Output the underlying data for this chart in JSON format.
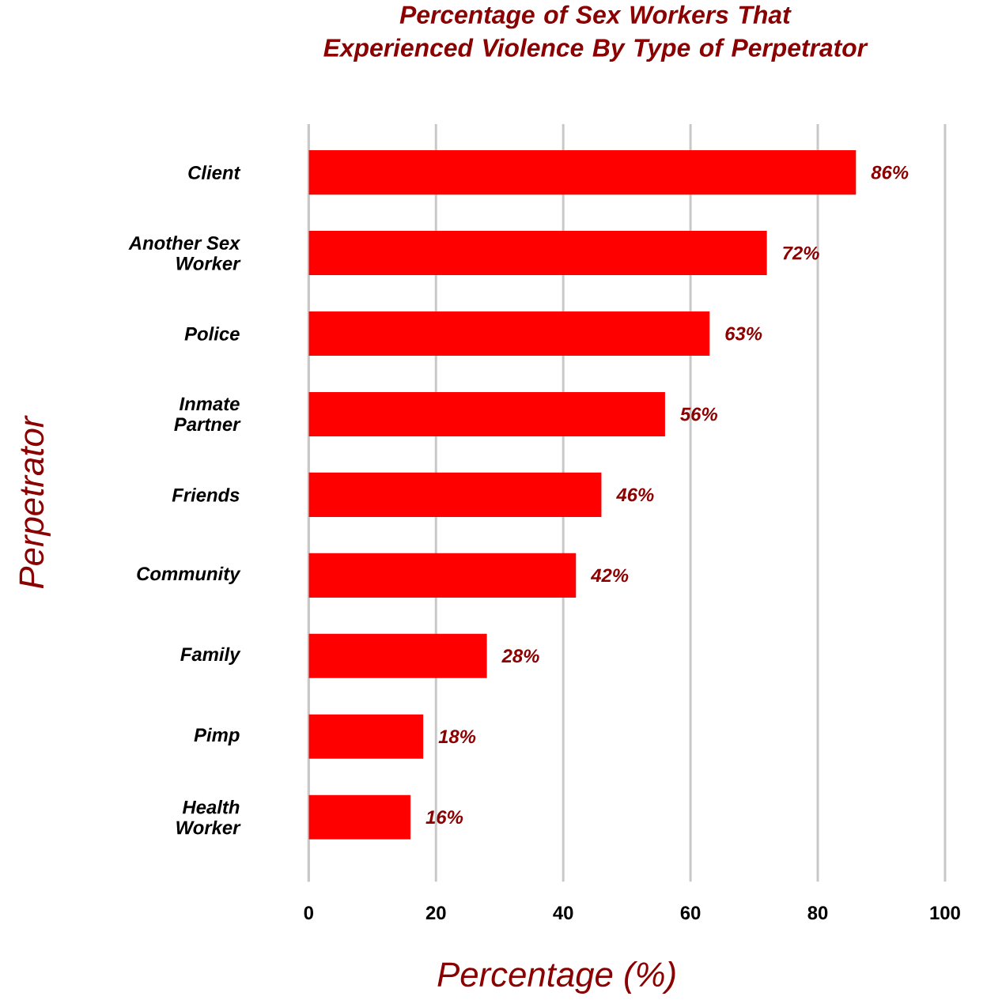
{
  "chart_data": {
    "type": "bar",
    "orientation": "horizontal",
    "title": "Percentage of Sex Workers That Experienced Violence By Type of Perpetrator",
    "xlabel": "Percentage (%)",
    "ylabel": "Perpetrator",
    "categories": [
      "Client",
      "Another Sex Worker",
      "Police",
      "Inmate Partner",
      "Friends",
      "Community",
      "Family",
      "Pimp",
      "Health Worker"
    ],
    "values": [
      86,
      72,
      63,
      56,
      46,
      42,
      28,
      18,
      16
    ],
    "value_labels": [
      "86%",
      "72%",
      "63%",
      "56%",
      "46%",
      "42%",
      "28%",
      "18%",
      "16%"
    ],
    "color": "#ff0000",
    "xlim": [
      0,
      100
    ],
    "xticks": [
      0,
      20,
      40,
      60,
      80,
      100
    ],
    "grid": "x"
  }
}
